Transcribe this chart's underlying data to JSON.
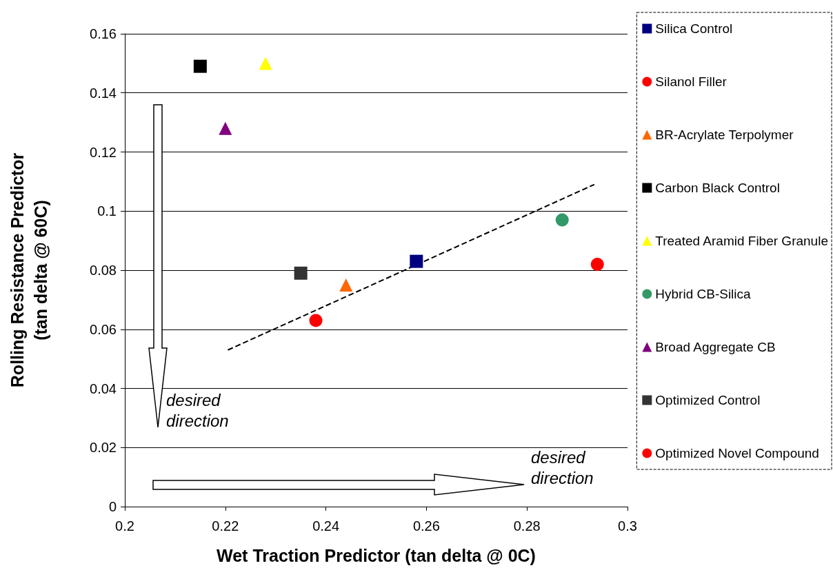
{
  "chart_data": {
    "type": "scatter",
    "xlabel": "Wet Traction Predictor (tan delta @ 0C)",
    "ylabel": "Rolling Resistance Predictor\n(tan delta @ 60C)",
    "xlim": [
      0.2,
      0.3
    ],
    "xticks": [
      0.2,
      0.22,
      0.24,
      0.26,
      0.28,
      0.3
    ],
    "ylim": [
      0,
      0.16
    ],
    "yticks": [
      0,
      0.02,
      0.04,
      0.06,
      0.08,
      0.1,
      0.12,
      0.14,
      0.16
    ],
    "grid": "y",
    "legend": "right",
    "series": [
      {
        "name": "Silica Control",
        "color": "#000080",
        "marker": "square",
        "x": [
          0.258
        ],
        "values": [
          0.083
        ]
      },
      {
        "name": "Silanol Filler",
        "color": "#ff0000",
        "marker": "circle",
        "x": [
          0.294
        ],
        "values": [
          0.082
        ]
      },
      {
        "name": "BR-Acrylate Terpolymer",
        "color": "#ff6600",
        "marker": "triangle",
        "x": [
          0.244
        ],
        "values": [
          0.075
        ]
      },
      {
        "name": "Carbon Black Control",
        "color": "#000000",
        "marker": "square",
        "x": [
          0.215
        ],
        "values": [
          0.149
        ]
      },
      {
        "name": "Treated Aramid Fiber Granule",
        "color": "#ffff00",
        "marker": "triangle",
        "x": [
          0.228
        ],
        "values": [
          0.15
        ]
      },
      {
        "name": "Hybrid CB-Silica",
        "color": "#339966",
        "marker": "circle",
        "x": [
          0.287
        ],
        "values": [
          0.097
        ]
      },
      {
        "name": "Broad Aggregate CB",
        "color": "#800080",
        "marker": "triangle",
        "x": [
          0.22
        ],
        "values": [
          0.128
        ]
      },
      {
        "name": "Optimized Control",
        "color": "#333333",
        "marker": "square",
        "x": [
          0.235
        ],
        "values": [
          0.079
        ]
      },
      {
        "name": "Optimized Novel Compound",
        "color": "#ff0000",
        "marker": "circle",
        "x": [
          0.238
        ],
        "values": [
          0.063
        ]
      },
      {
        "type": "line",
        "color": "#000000",
        "line_style": "dashed",
        "x": [
          0.2205,
          0.2934
        ],
        "values": [
          0.053,
          0.109
        ]
      }
    ],
    "annotations": [
      "desired direction",
      "desired direction"
    ]
  }
}
